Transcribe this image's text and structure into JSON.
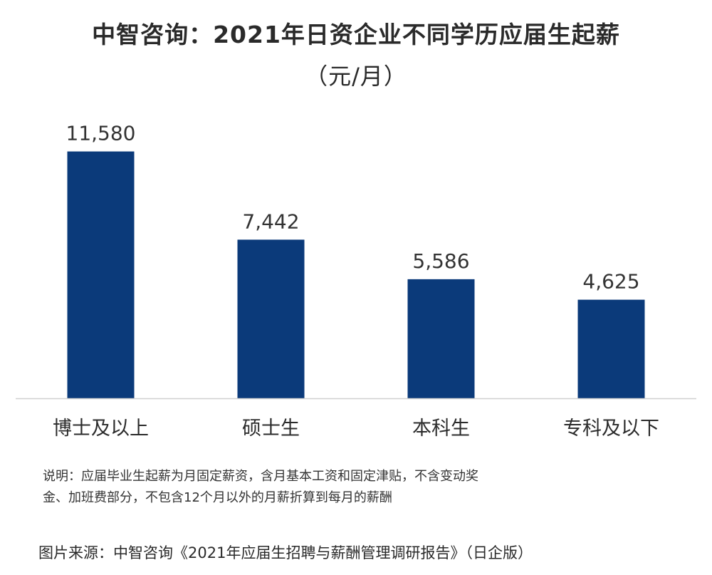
{
  "title": "中智咨询：2021年日资企业不同学历应届生起薪",
  "subtitle": "（元/月）",
  "chart_data": {
    "type": "bar",
    "title": "中智咨询：2021年日资企业不同学历应届生起薪",
    "subtitle": "（元/月）",
    "categories": [
      "博士及以上",
      "硕士生",
      "本科生",
      "专科及以下"
    ],
    "values": [
      11580,
      7442,
      5586,
      4625
    ],
    "value_labels": [
      "11,580",
      "7,442",
      "5,586",
      "4,625"
    ],
    "ylim": [
      0,
      12000
    ],
    "grid": false,
    "legend": "none",
    "bar_color": "#0b3a7a"
  },
  "note": {
    "line1": "说明：应届毕业生起薪为月固定薪资，含月基本工资和固定津贴，不含变动奖",
    "line2": "金、加班费部分，不包含12个月以外的月薪折算到每月的薪酬"
  },
  "source": "图片来源：中智咨询《2021年应届生招聘与薪酬管理调研报告》（日企版）"
}
